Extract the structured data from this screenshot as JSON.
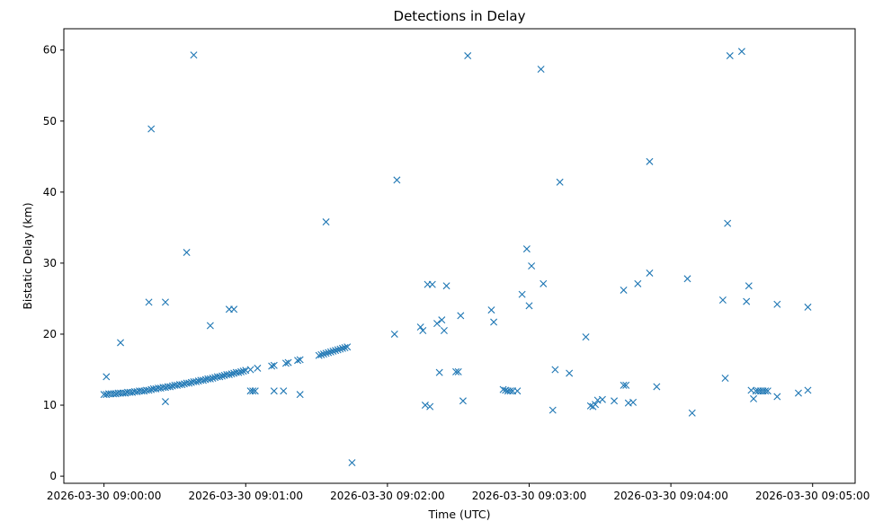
{
  "chart_data": {
    "type": "scatter",
    "title": "Detections in Delay",
    "xlabel": "Time (UTC)",
    "ylabel": "Bistatic Delay (km)",
    "marker": "x",
    "color": "#1f77b4",
    "grid": false,
    "legend": "none",
    "x_unit": "seconds after 2026-03-30 09:00:00 UTC",
    "xlim": [
      -17,
      318
    ],
    "ylim": [
      -1,
      63
    ],
    "x_ticks": [
      0,
      60,
      120,
      180,
      240,
      300
    ],
    "x_tick_labels": [
      "2026-03-30 09:00:00",
      "2026-03-30 09:01:00",
      "2026-03-30 09:02:00",
      "2026-03-30 09:03:00",
      "2026-03-30 09:04:00",
      "2026-03-30 09:05:00"
    ],
    "y_ticks": [
      0,
      10,
      20,
      30,
      40,
      50,
      60
    ],
    "y_tick_labels": [
      "0",
      "10",
      "20",
      "30",
      "40",
      "50",
      "60"
    ],
    "series": [
      {
        "points": [
          [
            0,
            11.5
          ],
          [
            1,
            11.5
          ],
          [
            2,
            11.6
          ],
          [
            3,
            11.6
          ],
          [
            4,
            11.6
          ],
          [
            5,
            11.6
          ],
          [
            6,
            11.7
          ],
          [
            7,
            11.7
          ],
          [
            8,
            11.7
          ],
          [
            9,
            11.7
          ],
          [
            10,
            11.8
          ],
          [
            11,
            11.8
          ],
          [
            12,
            11.8
          ],
          [
            13,
            11.9
          ],
          [
            14,
            11.9
          ],
          [
            15,
            12.0
          ],
          [
            16,
            12.0
          ],
          [
            17,
            12.0
          ],
          [
            18,
            12.1
          ],
          [
            19,
            12.1
          ],
          [
            20,
            12.2
          ],
          [
            21,
            12.3
          ],
          [
            22,
            12.3
          ],
          [
            23,
            12.4
          ],
          [
            24,
            12.4
          ],
          [
            25,
            12.5
          ],
          [
            26,
            12.5
          ],
          [
            27,
            12.6
          ],
          [
            28,
            12.6
          ],
          [
            29,
            12.7
          ],
          [
            30,
            12.8
          ],
          [
            31,
            12.8
          ],
          [
            32,
            12.9
          ],
          [
            33,
            12.9
          ],
          [
            34,
            13.0
          ],
          [
            35,
            13.1
          ],
          [
            36,
            13.1
          ],
          [
            37,
            13.2
          ],
          [
            38,
            13.3
          ],
          [
            39,
            13.3
          ],
          [
            40,
            13.4
          ],
          [
            41,
            13.5
          ],
          [
            42,
            13.5
          ],
          [
            43,
            13.6
          ],
          [
            44,
            13.7
          ],
          [
            45,
            13.7
          ],
          [
            46,
            13.8
          ],
          [
            47,
            13.9
          ],
          [
            48,
            14.0
          ],
          [
            49,
            14.0
          ],
          [
            50,
            14.1
          ],
          [
            51,
            14.2
          ],
          [
            52,
            14.3
          ],
          [
            53,
            14.3
          ],
          [
            54,
            14.4
          ],
          [
            55,
            14.5
          ],
          [
            56,
            14.6
          ],
          [
            57,
            14.6
          ],
          [
            58,
            14.7
          ],
          [
            59,
            14.8
          ],
          [
            60,
            14.9
          ],
          [
            62,
            15.0
          ],
          [
            65,
            15.2
          ],
          [
            71,
            15.5
          ],
          [
            72,
            15.6
          ],
          [
            77,
            15.9
          ],
          [
            78,
            16.0
          ],
          [
            82,
            16.3
          ],
          [
            83,
            16.4
          ],
          [
            91,
            17.0
          ],
          [
            92,
            17.1
          ],
          [
            93,
            17.2
          ],
          [
            94,
            17.3
          ],
          [
            95,
            17.4
          ],
          [
            96,
            17.5
          ],
          [
            97,
            17.6
          ],
          [
            98,
            17.7
          ],
          [
            99,
            17.8
          ],
          [
            100,
            17.9
          ],
          [
            101,
            18.0
          ],
          [
            102,
            18.1
          ],
          [
            103,
            18.2
          ],
          [
            1,
            14.0
          ],
          [
            7,
            18.8
          ],
          [
            19,
            24.5
          ],
          [
            20,
            48.9
          ],
          [
            26,
            24.5
          ],
          [
            26,
            10.5
          ],
          [
            35,
            31.5
          ],
          [
            38,
            59.3
          ],
          [
            45,
            21.2
          ],
          [
            53,
            23.5
          ],
          [
            55,
            23.5
          ],
          [
            62,
            12.0
          ],
          [
            63,
            12.0
          ],
          [
            64,
            12.0
          ],
          [
            72,
            12.0
          ],
          [
            76,
            12.0
          ],
          [
            83,
            11.5
          ],
          [
            94,
            35.8
          ],
          [
            105,
            1.9
          ],
          [
            123,
            20.0
          ],
          [
            124,
            41.7
          ],
          [
            134,
            21.0
          ],
          [
            135,
            20.5
          ],
          [
            136,
            10.0
          ],
          [
            137,
            27.0
          ],
          [
            138,
            9.8
          ],
          [
            139,
            27.0
          ],
          [
            141,
            21.5
          ],
          [
            142,
            14.6
          ],
          [
            143,
            22.0
          ],
          [
            144,
            20.5
          ],
          [
            145,
            26.8
          ],
          [
            149,
            14.7
          ],
          [
            150,
            14.7
          ],
          [
            151,
            22.6
          ],
          [
            152,
            10.6
          ],
          [
            154,
            59.2
          ],
          [
            164,
            23.4
          ],
          [
            165,
            21.7
          ],
          [
            169,
            12.2
          ],
          [
            170,
            12.1
          ],
          [
            171,
            12.0
          ],
          [
            172,
            12.0
          ],
          [
            173,
            12.0
          ],
          [
            175,
            12.0
          ],
          [
            177,
            25.6
          ],
          [
            179,
            32.0
          ],
          [
            180,
            24.0
          ],
          [
            181,
            29.6
          ],
          [
            185,
            57.3
          ],
          [
            186,
            27.1
          ],
          [
            190,
            9.3
          ],
          [
            191,
            15.0
          ],
          [
            193,
            41.4
          ],
          [
            197,
            14.5
          ],
          [
            204,
            19.6
          ],
          [
            206,
            9.9
          ],
          [
            207,
            9.8
          ],
          [
            208,
            10.1
          ],
          [
            209,
            10.7
          ],
          [
            211,
            10.8
          ],
          [
            216,
            10.6
          ],
          [
            220,
            12.8
          ],
          [
            221,
            12.8
          ],
          [
            222,
            10.3
          ],
          [
            224,
            10.4
          ],
          [
            220,
            26.2
          ],
          [
            226,
            27.1
          ],
          [
            231,
            44.3
          ],
          [
            231,
            28.6
          ],
          [
            234,
            12.6
          ],
          [
            247,
            27.8
          ],
          [
            249,
            8.9
          ],
          [
            262,
            24.8
          ],
          [
            263,
            13.8
          ],
          [
            264,
            35.6
          ],
          [
            265,
            59.2
          ],
          [
            270,
            59.8
          ],
          [
            272,
            24.6
          ],
          [
            273,
            26.8
          ],
          [
            274,
            12.1
          ],
          [
            275,
            10.9
          ],
          [
            276,
            12.0
          ],
          [
            277,
            12.0
          ],
          [
            278,
            12.0
          ],
          [
            279,
            12.0
          ],
          [
            280,
            12.0
          ],
          [
            281,
            12.0
          ],
          [
            285,
            24.2
          ],
          [
            285,
            11.2
          ],
          [
            294,
            11.7
          ],
          [
            298,
            12.1
          ],
          [
            298,
            23.8
          ]
        ]
      }
    ]
  }
}
